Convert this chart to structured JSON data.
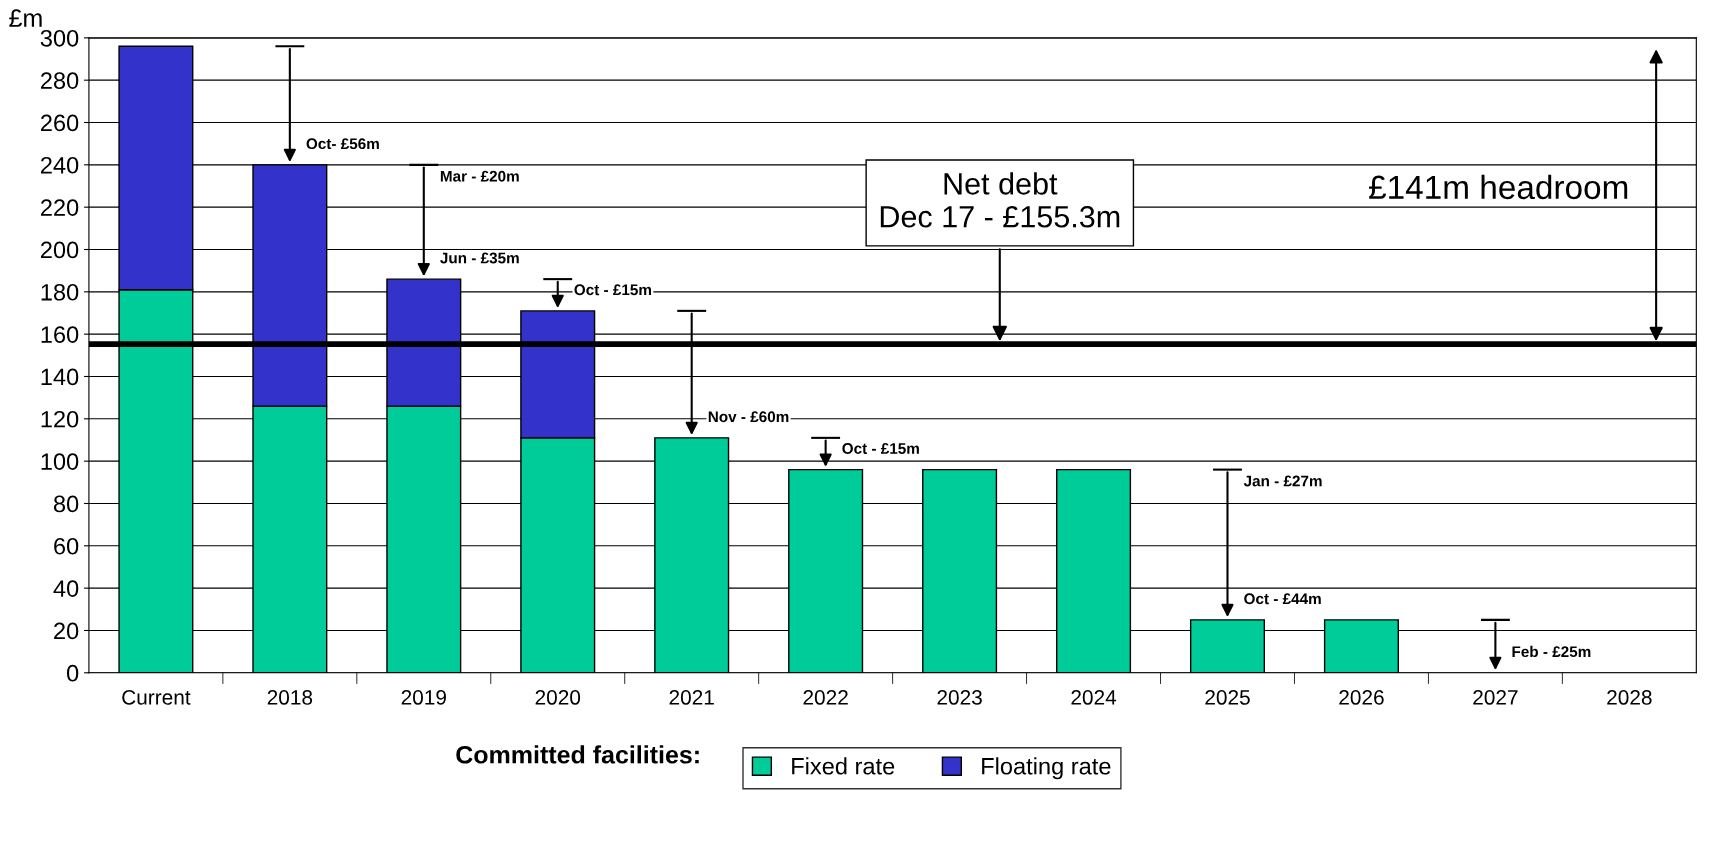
{
  "chart_data": {
    "type": "bar",
    "stacked": true,
    "ylabel": "£m",
    "legend_title": "Committed facilities:",
    "legend": "bottom",
    "categories": [
      "Current",
      "2018",
      "2019",
      "2020",
      "2021",
      "2022",
      "2023",
      "2024",
      "2025",
      "2026",
      "2027",
      "2028"
    ],
    "series": [
      {
        "name": "Fixed rate",
        "color": "#00cc99",
        "values": [
          181,
          126,
          126,
          111,
          111,
          96,
          96,
          96,
          25,
          25,
          0,
          0
        ]
      },
      {
        "name": "Floating rate",
        "color": "#3333cc",
        "values": [
          115,
          114,
          60,
          60,
          0,
          0,
          0,
          0,
          0,
          0,
          0,
          0
        ]
      }
    ],
    "ylim": [
      0,
      300
    ],
    "yticks": [
      0,
      20,
      40,
      60,
      80,
      100,
      120,
      140,
      160,
      180,
      200,
      220,
      240,
      260,
      280,
      300
    ],
    "grid": "y",
    "ref_lines": [
      {
        "axis": "y",
        "value": 155.3,
        "label": "Net debt\nDec 17 - £155.3m",
        "color": "#000000"
      }
    ],
    "annotations": [
      {
        "text": "Oct- £56m",
        "x": "2018",
        "y": 240
      },
      "Mar - £20m",
      {
        "text": "Jun - £35m",
        "x": "2019",
        "y": 186
      },
      {
        "text": "Oct - £15m",
        "x": "2020",
        "y": 171
      },
      {
        "text": "Nov - £60m",
        "x": "2021",
        "y": 111
      },
      {
        "text": "Oct - £15m",
        "x": "2022",
        "y": 96
      },
      "Jan - £27m",
      {
        "text": "Oct - £44m",
        "x": "2025",
        "y": 25
      },
      {
        "text": "Feb - £25m",
        "x": "2027",
        "y": 0
      },
      "£141m headroom"
    ]
  }
}
